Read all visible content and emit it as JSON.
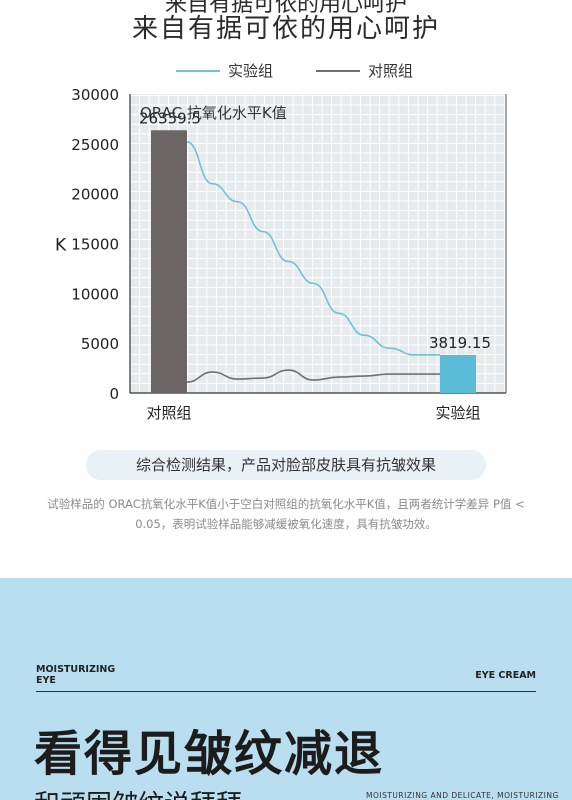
{
  "header": {
    "cut_text": "来自有据可依的用心呵护",
    "title": "来自有据可依的用心呵护"
  },
  "legend": {
    "experiment": "实验组",
    "control": "对照组"
  },
  "chart_data": {
    "type": "bar",
    "title": "ORAC 抗氧化水平K值",
    "ylabel": "K",
    "ylim": [
      0,
      30000
    ],
    "yticks": [
      0,
      5000,
      10000,
      15000,
      20000,
      25000,
      30000
    ],
    "categories": [
      "对照组",
      "实验组"
    ],
    "values": [
      26359.5,
      3819.15
    ],
    "value_labels": [
      "26359.5",
      "3819.15"
    ],
    "bar_colors": [
      "#6b6566",
      "#5bbcd8"
    ],
    "grid": true,
    "series": [
      {
        "name": "实验组",
        "color": "#6ec2d8",
        "x": [
          0,
          0.1,
          0.2,
          0.3,
          0.4,
          0.5,
          0.6,
          0.7,
          0.8,
          0.9,
          1.0
        ],
        "y": [
          25200,
          21000,
          19200,
          16200,
          13200,
          11000,
          8000,
          5800,
          4500,
          3819.15,
          3819.15
        ]
      },
      {
        "name": "对照组",
        "color": "#707070",
        "x": [
          0,
          0.1,
          0.2,
          0.3,
          0.4,
          0.5,
          0.6,
          0.7,
          0.8,
          0.9,
          1.0
        ],
        "y": [
          1100,
          2100,
          1400,
          1500,
          2300,
          1300,
          1600,
          1700,
          1900,
          1900,
          1900
        ]
      }
    ]
  },
  "summary": "综合检测结果，产品对脸部皮肤具有抗皱效果",
  "note": "试验样品的 ORAC抗氧化水平K值小于空白对照组的抗氧化水平K值，且两者统计学差异 P值 < 0.05，表明试验样品能够减缓被氧化速度，具有抗皱功效。",
  "band": {
    "tag_left_1": "MOISTURIZING",
    "tag_left_2": "EYE",
    "tag_right": "EYE CREAM",
    "headline": "看得见皱纹减退",
    "subline": "和顽固皱纹说拜拜",
    "small_right": "MOISTURIZING AND DELICATE, MOISTURIZING"
  },
  "colors": {
    "experiment": "#5bbcd8",
    "control": "#6b6566",
    "grid_bg": "#e6eaed",
    "band_bg": "#b8def0"
  }
}
